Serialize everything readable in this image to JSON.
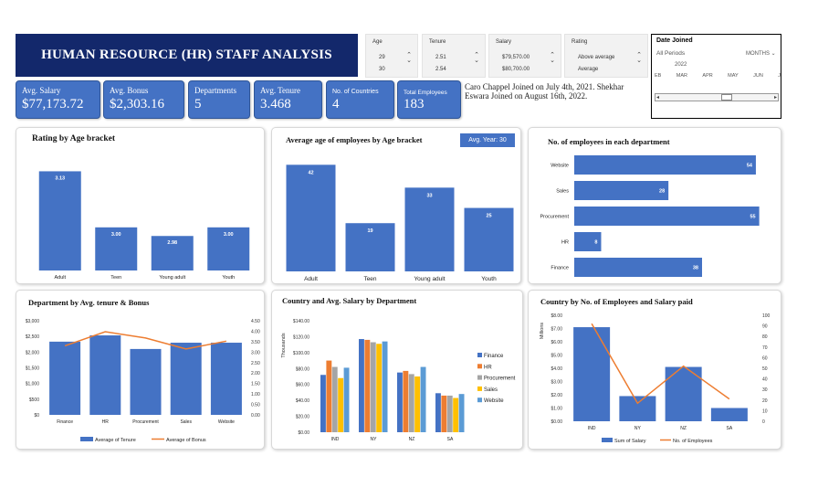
{
  "title": "HUMAN RESOURCE (HR) STAFF ANALYSIS",
  "slicers": [
    {
      "label": "Age",
      "v1": "29",
      "v2": "30"
    },
    {
      "label": "Tenure",
      "v1": "2.51",
      "v2": "2.54"
    },
    {
      "label": "Salary",
      "v1": "$79,570.00",
      "v2": "$80,700.00"
    },
    {
      "label": "Rating",
      "v1": "Above average",
      "v2": "Average"
    }
  ],
  "date_filter": {
    "title": "Date Joined",
    "period": "All Periods",
    "unit": "MONTHS",
    "year": "2022",
    "months": [
      "EB",
      "MAR",
      "APR",
      "MAY",
      "JUN",
      "J"
    ]
  },
  "kpis": [
    {
      "label": "Avg. Salary",
      "value": "$77,173.72"
    },
    {
      "label": "Avg. Bonus",
      "value": "$2,303.16"
    },
    {
      "label": "Departments",
      "value": "5"
    },
    {
      "label": "Avg. Tenure",
      "value": "3.468"
    },
    {
      "label": "No. of Countries",
      "value": "4"
    },
    {
      "label": "Total Employees",
      "value": "183"
    }
  ],
  "note": "Caro Chappel Joined on July 4th, 2021. Shekhar Eswara Joined on August 16th, 2022.",
  "charts": {
    "rating": {
      "title": "Rating by Age bracket",
      "chart_data": {
        "type": "bar",
        "categories": [
          "Adult",
          "Teen",
          "Young adult",
          "Youth"
        ],
        "values": [
          3.13,
          3.0,
          2.98,
          3.0
        ],
        "labels": [
          "3.13",
          "3.00",
          "2.98",
          "3.00"
        ],
        "ylim": [
          2.9,
          3.15
        ]
      }
    },
    "avg_age": {
      "title": "Average age of employees by Age bracket",
      "badge": "Avg. Year: 30",
      "chart_data": {
        "type": "bar",
        "categories": [
          "Adult",
          "Teen",
          "Young adult",
          "Youth"
        ],
        "values": [
          42,
          19,
          33,
          25
        ],
        "ylim": [
          0,
          45
        ]
      }
    },
    "dept_count": {
      "title": "No. of employees in each department",
      "chart_data": {
        "type": "bar",
        "orientation": "horizontal",
        "categories": [
          "Website",
          "Sales",
          "Procurement",
          "HR",
          "Finance"
        ],
        "values": [
          54,
          28,
          55,
          8,
          38
        ],
        "xlim": [
          0,
          57
        ]
      }
    },
    "tenure_bonus": {
      "title": "Department by Avg. tenure & Bonus",
      "chart_data": {
        "type": "bar",
        "categories": [
          "Finance",
          "HR",
          "Procurement",
          "Sales",
          "Website"
        ],
        "series": [
          {
            "name": "Average of Tenure",
            "values": [
              3.5,
              3.8,
              3.15,
              3.45,
              3.45
            ]
          },
          {
            "name": "Average of Bonus",
            "values": [
              2200,
              2650,
              2450,
              2100,
              2350
            ]
          }
        ],
        "y_left_ticks": [
          "$3,000",
          "$2,500",
          "$2,000",
          "$1,500",
          "$1,000",
          "$500",
          "$0"
        ],
        "y_right_ticks": [
          "4.50",
          "4.00",
          "3.50",
          "3.00",
          "2.50",
          "2.00",
          "1.50",
          "1.00",
          "0.50",
          "0.00"
        ],
        "ylim_left": [
          0,
          3000
        ],
        "ylim_right": [
          0,
          4.5
        ]
      }
    },
    "country_salary": {
      "title": "Country and Avg. Salary by Department",
      "chart_data": {
        "type": "bar",
        "categories": [
          "IND",
          "NY",
          "NZ",
          "SA"
        ],
        "series": [
          {
            "name": "Finance",
            "values": [
              72,
              117,
              75,
              49
            ]
          },
          {
            "name": "HR",
            "values": [
              90,
              116,
              77,
              46
            ]
          },
          {
            "name": "Procurement",
            "values": [
              82,
              113,
              73,
              46
            ]
          },
          {
            "name": "Sales",
            "values": [
              68,
              111,
              70,
              43
            ]
          },
          {
            "name": "Website",
            "values": [
              81,
              114,
              82,
              48
            ]
          }
        ],
        "ylabel": "Thousands",
        "y_ticks": [
          "$140.00",
          "$120.00",
          "$100.00",
          "$80.00",
          "$60.00",
          "$40.00",
          "$20.00",
          "$0.00"
        ],
        "ylim": [
          0,
          140
        ]
      }
    },
    "country_emp": {
      "title": "Country by No. of Employees and Salary paid",
      "chart_data": {
        "type": "bar",
        "categories": [
          "IND",
          "NY",
          "NZ",
          "SA"
        ],
        "series": [
          {
            "name": "Sum of Salary",
            "values": [
              7.1,
              1.9,
              4.1,
              1.0
            ]
          },
          {
            "name": "No. of Employees",
            "values": [
              92,
              17,
              52,
              21
            ]
          }
        ],
        "ylabel": "Millions",
        "y_left_ticks": [
          "$8.00",
          "$7.00",
          "$6.00",
          "$5.00",
          "$4.00",
          "$3.00",
          "$2.00",
          "$1.00",
          "$0.00"
        ],
        "y_right_ticks": [
          "100",
          "90",
          "80",
          "70",
          "60",
          "50",
          "40",
          "30",
          "20",
          "10",
          "0"
        ],
        "ylim_left": [
          0,
          8
        ],
        "ylim_right": [
          0,
          100
        ]
      }
    }
  },
  "colors": {
    "navy": "#13286b",
    "bar": "#4472c4",
    "line": "#ed7d31",
    "series": [
      "#4472c4",
      "#ed7d31",
      "#a5a5a5",
      "#ffc000",
      "#5b9bd5"
    ]
  }
}
